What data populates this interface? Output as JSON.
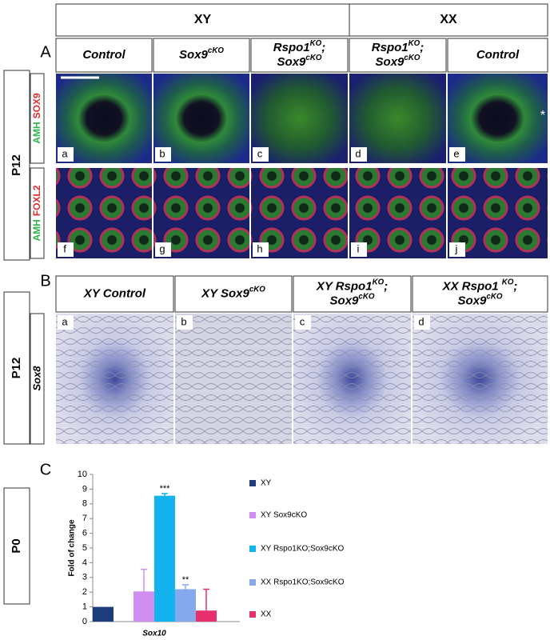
{
  "panel_a": {
    "label": "A",
    "groups": [
      "XY",
      "XX"
    ],
    "columns": [
      [
        {
          "base": "Control"
        }
      ],
      [
        {
          "base": "Sox9",
          "sup": "cKO"
        }
      ],
      [
        {
          "base": "Rspo1",
          "sup": "KO",
          "tail": ";"
        },
        {
          "base": "Sox9",
          "sup": "cKO"
        }
      ],
      [
        {
          "base": "Rspo1",
          "sup": "KO",
          "tail": ";"
        },
        {
          "base": "Sox9",
          "sup": "cKO"
        }
      ],
      [
        {
          "base": "Control"
        }
      ]
    ],
    "stage": "P12",
    "rows": [
      [
        {
          "text": "AMH",
          "color": "#2db84a"
        },
        {
          "text": "SOX9",
          "color": "#e32b2b"
        }
      ],
      [
        {
          "text": "AMH",
          "color": "#2db84a"
        },
        {
          "text": "FOXL2",
          "color": "#e32b2b"
        }
      ]
    ],
    "image_letters": [
      "a",
      "b",
      "c",
      "d",
      "e",
      "f",
      "g",
      "h",
      "i",
      "j"
    ],
    "asterisk": "*"
  },
  "panel_b": {
    "label": "B",
    "columns": [
      [
        {
          "base": "XY Control"
        }
      ],
      [
        {
          "base": "XY Sox9",
          "sup": "cKO"
        }
      ],
      [
        {
          "base": "XY Rspo1",
          "sup": "KO",
          "tail": ";"
        },
        {
          "base": "Sox9",
          "sup": "cKO"
        }
      ],
      [
        {
          "base": "XX Rspo1 ",
          "sup": "KO",
          "tail": ";"
        },
        {
          "base": "Sox9",
          "sup": "cKO"
        }
      ]
    ],
    "stage": "P12",
    "gene": "Sox8",
    "image_letters": [
      "a",
      "b",
      "c",
      "d"
    ]
  },
  "panel_c": {
    "label": "C",
    "stage": "P0",
    "chart_data": {
      "type": "bar",
      "y_label": "Fold of change",
      "categories": [
        "Sox10"
      ],
      "ylim": [
        0,
        10
      ],
      "yticks": [
        0,
        1,
        2,
        3,
        4,
        5,
        6,
        7,
        8,
        9,
        10
      ],
      "series": [
        {
          "name": "XY",
          "color": "#1c3d7a",
          "values": [
            1
          ],
          "errors": [
            null
          ]
        },
        {
          "name": "XY Sox9cKO",
          "color": "#cf8ef0",
          "values": [
            2.05
          ],
          "errors": [
            1.5
          ]
        },
        {
          "name": "XY Rspo1KO;Sox9cKO",
          "color": "#12b3ee",
          "values": [
            8.55
          ],
          "errors": [
            0.15
          ],
          "annotation": "***"
        },
        {
          "name": "XX Rspo1KO;Sox9cKO",
          "color": "#86a9ee",
          "values": [
            2.2
          ],
          "errors": [
            0.3
          ],
          "annotation": "**"
        },
        {
          "name": "XX",
          "color": "#e8306c",
          "values": [
            0.75
          ],
          "errors": [
            1.45
          ]
        }
      ]
    }
  }
}
